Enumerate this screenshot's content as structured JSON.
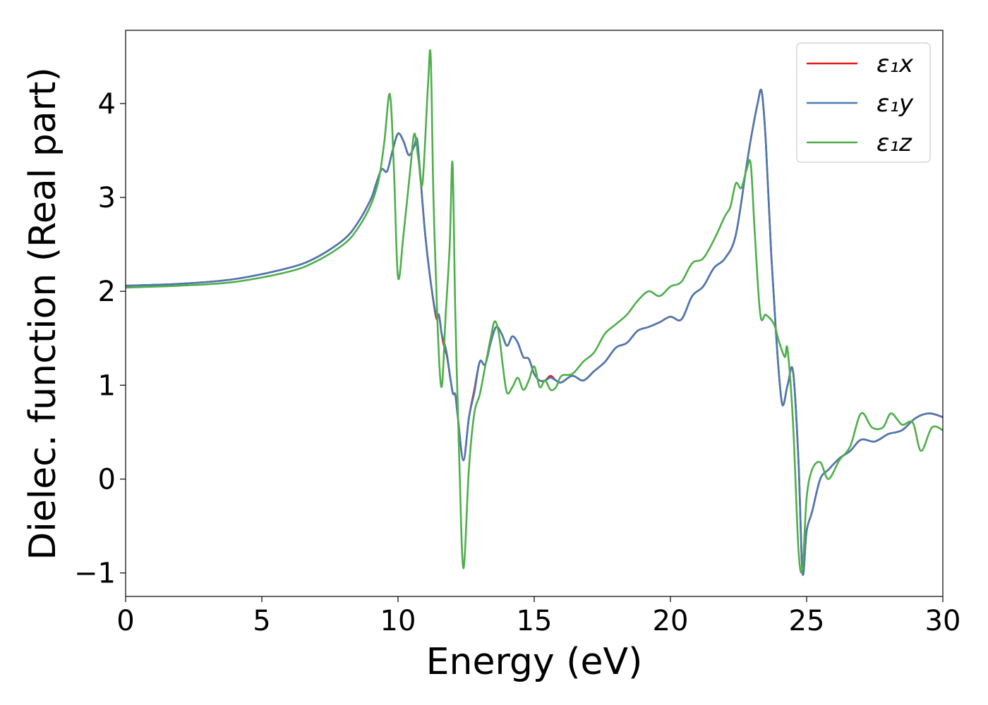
{
  "chart_data": {
    "type": "line",
    "title": "",
    "xlabel": "Energy (eV)",
    "ylabel": "Dielec. function (Real part)",
    "xlim": [
      0,
      30
    ],
    "ylim": [
      -1.25,
      4.78
    ],
    "xticks": [
      0,
      5,
      10,
      15,
      20,
      25,
      30
    ],
    "xtick_labels": [
      "0",
      "5",
      "10",
      "15",
      "20",
      "25",
      "30"
    ],
    "yticks": [
      -1,
      0,
      1,
      2,
      3,
      4
    ],
    "ytick_labels": [
      "−1",
      "0",
      "1",
      "2",
      "3",
      "4"
    ],
    "grid": false,
    "legend_position": "top-right",
    "series": [
      {
        "name": "ε₁x",
        "color": "#e41a1c",
        "x": [
          0,
          2,
          4,
          6,
          7,
          8,
          8.5,
          9,
          9.2,
          9.4,
          9.6,
          9.8,
          10.0,
          10.2,
          10.4,
          10.6,
          10.7,
          10.8,
          11.0,
          11.2,
          11.4,
          11.5,
          11.6,
          11.7,
          11.8,
          12.0,
          12.1,
          12.2,
          12.4,
          12.6,
          12.8,
          13.0,
          13.2,
          13.4,
          13.6,
          13.8,
          14.0,
          14.2,
          14.4,
          14.6,
          14.8,
          15.0,
          15.2,
          15.4,
          15.6,
          15.8,
          16.0,
          16.4,
          16.8,
          17.2,
          17.6,
          18.0,
          18.4,
          18.8,
          19.2,
          19.6,
          20.0,
          20.4,
          20.8,
          21.2,
          21.6,
          22.0,
          22.4,
          22.8,
          23.0,
          23.2,
          23.35,
          23.5,
          23.7,
          23.9,
          24.1,
          24.3,
          24.5,
          24.7,
          24.85,
          25.0,
          25.2,
          25.5,
          25.8,
          26.2,
          26.6,
          27.0,
          27.5,
          28.0,
          28.5,
          29.0,
          29.5,
          30.0
        ],
        "y": [
          2.06,
          2.08,
          2.13,
          2.25,
          2.36,
          2.55,
          2.72,
          2.98,
          3.15,
          3.3,
          3.28,
          3.5,
          3.68,
          3.6,
          3.45,
          3.55,
          3.62,
          3.3,
          2.6,
          2.1,
          1.72,
          1.75,
          1.55,
          1.4,
          1.3,
          0.93,
          0.9,
          0.65,
          0.2,
          0.65,
          0.95,
          1.25,
          1.22,
          1.45,
          1.62,
          1.55,
          1.42,
          1.52,
          1.45,
          1.3,
          1.28,
          1.12,
          1.05,
          1.05,
          1.1,
          1.05,
          1.03,
          1.1,
          1.05,
          1.15,
          1.25,
          1.4,
          1.45,
          1.58,
          1.62,
          1.67,
          1.73,
          1.7,
          1.95,
          2.05,
          2.25,
          2.35,
          2.6,
          3.35,
          3.7,
          4.0,
          4.13,
          3.6,
          2.4,
          1.45,
          0.8,
          1.0,
          1.15,
          0.2,
          -1.0,
          -0.55,
          -0.35,
          0.0,
          0.1,
          0.22,
          0.3,
          0.42,
          0.4,
          0.48,
          0.52,
          0.65,
          0.7,
          0.66
        ]
      },
      {
        "name": "ε₁y",
        "color": "#4a7ab0",
        "x": [
          0,
          2,
          4,
          6,
          7,
          8,
          8.5,
          9,
          9.2,
          9.4,
          9.6,
          9.8,
          10.0,
          10.2,
          10.4,
          10.6,
          10.7,
          10.8,
          11.0,
          11.2,
          11.4,
          11.5,
          11.6,
          11.7,
          11.8,
          12.0,
          12.1,
          12.2,
          12.4,
          12.6,
          12.8,
          13.0,
          13.2,
          13.4,
          13.6,
          13.8,
          14.0,
          14.2,
          14.4,
          14.6,
          14.8,
          15.0,
          15.2,
          15.4,
          15.6,
          15.8,
          16.0,
          16.4,
          16.8,
          17.2,
          17.6,
          18.0,
          18.4,
          18.8,
          19.2,
          19.6,
          20.0,
          20.4,
          20.8,
          21.2,
          21.6,
          22.0,
          22.4,
          22.8,
          23.0,
          23.2,
          23.35,
          23.5,
          23.7,
          23.9,
          24.1,
          24.3,
          24.5,
          24.7,
          24.85,
          25.0,
          25.2,
          25.5,
          25.8,
          26.2,
          26.6,
          27.0,
          27.5,
          28.0,
          28.5,
          29.0,
          29.5,
          30.0
        ],
        "y": [
          2.06,
          2.08,
          2.13,
          2.25,
          2.36,
          2.55,
          2.72,
          2.98,
          3.15,
          3.3,
          3.28,
          3.5,
          3.68,
          3.6,
          3.45,
          3.55,
          3.62,
          3.3,
          2.6,
          2.1,
          1.75,
          1.75,
          1.55,
          1.45,
          1.32,
          0.93,
          0.9,
          0.65,
          0.2,
          0.65,
          0.92,
          1.25,
          1.22,
          1.45,
          1.62,
          1.55,
          1.42,
          1.52,
          1.45,
          1.3,
          1.28,
          1.12,
          1.05,
          1.05,
          1.08,
          1.05,
          1.03,
          1.1,
          1.05,
          1.15,
          1.25,
          1.4,
          1.45,
          1.58,
          1.62,
          1.67,
          1.73,
          1.7,
          1.95,
          2.05,
          2.25,
          2.35,
          2.6,
          3.35,
          3.7,
          4.0,
          4.13,
          3.6,
          2.4,
          1.45,
          0.8,
          1.0,
          1.15,
          0.2,
          -1.0,
          -0.55,
          -0.35,
          0.0,
          0.1,
          0.22,
          0.3,
          0.42,
          0.4,
          0.48,
          0.52,
          0.65,
          0.7,
          0.66
        ]
      },
      {
        "name": "ε₁z",
        "color": "#4daf4a",
        "x": [
          0,
          2,
          4,
          6,
          7,
          8,
          8.5,
          9,
          9.3,
          9.5,
          9.7,
          9.85,
          10.0,
          10.2,
          10.45,
          10.6,
          10.75,
          10.9,
          11.1,
          11.2,
          11.3,
          11.45,
          11.6,
          11.75,
          11.9,
          12.0,
          12.1,
          12.25,
          12.4,
          12.6,
          12.8,
          13.0,
          13.2,
          13.4,
          13.55,
          13.7,
          13.85,
          14.0,
          14.2,
          14.4,
          14.6,
          14.8,
          15.0,
          15.2,
          15.4,
          15.6,
          15.8,
          16.0,
          16.4,
          16.8,
          17.2,
          17.6,
          18.0,
          18.4,
          18.8,
          19.2,
          19.6,
          20.0,
          20.4,
          20.8,
          21.2,
          21.6,
          22.0,
          22.2,
          22.4,
          22.6,
          22.8,
          22.95,
          23.1,
          23.3,
          23.5,
          23.8,
          24.0,
          24.2,
          24.3,
          24.5,
          24.7,
          24.85,
          25.0,
          25.2,
          25.5,
          25.8,
          26.2,
          26.6,
          27.0,
          27.4,
          27.8,
          28.1,
          28.5,
          28.9,
          29.2,
          29.6,
          30.0
        ],
        "y": [
          2.04,
          2.06,
          2.1,
          2.21,
          2.32,
          2.5,
          2.66,
          2.92,
          3.2,
          3.6,
          4.1,
          3.3,
          2.15,
          2.6,
          3.3,
          3.68,
          3.4,
          3.15,
          4.2,
          4.5,
          3.0,
          1.65,
          0.98,
          1.75,
          2.5,
          3.37,
          1.8,
          0.2,
          -0.95,
          0.1,
          0.7,
          0.9,
          1.2,
          1.5,
          1.68,
          1.55,
          1.2,
          0.92,
          0.98,
          1.08,
          0.95,
          1.05,
          1.2,
          0.98,
          1.05,
          0.95,
          0.98,
          1.1,
          1.12,
          1.25,
          1.35,
          1.55,
          1.65,
          1.75,
          1.9,
          2.0,
          1.95,
          2.05,
          2.1,
          2.3,
          2.35,
          2.55,
          2.8,
          2.9,
          3.15,
          3.1,
          3.3,
          3.35,
          2.6,
          1.75,
          1.75,
          1.65,
          1.45,
          1.3,
          1.38,
          0.6,
          -0.75,
          -0.95,
          -0.2,
          0.1,
          0.18,
          0.0,
          0.2,
          0.35,
          0.7,
          0.55,
          0.55,
          0.7,
          0.58,
          0.6,
          0.3,
          0.55,
          0.52
        ]
      }
    ]
  }
}
